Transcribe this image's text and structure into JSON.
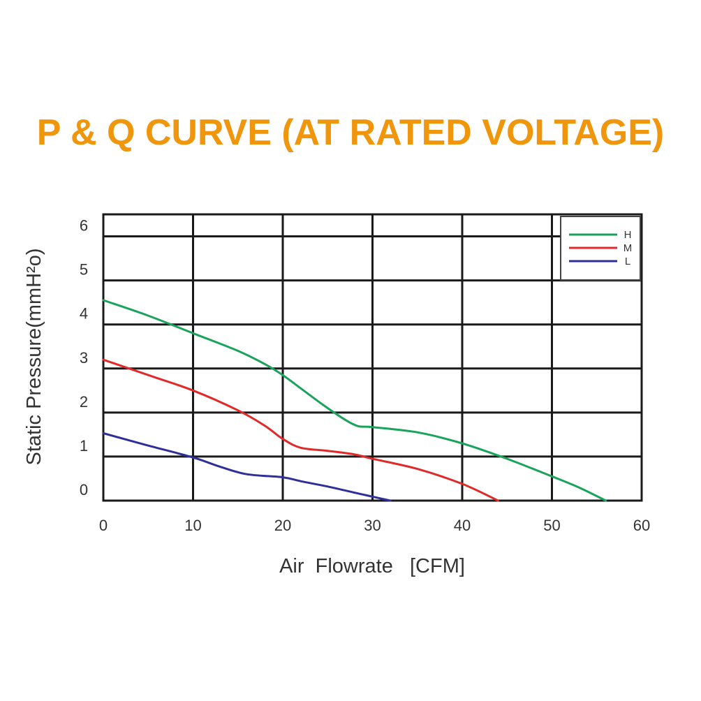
{
  "chart_data": {
    "type": "line",
    "title": "P & Q CURVE (AT RATED VOLTAGE)",
    "xlabel": "Air  Flowrate   [CFM]",
    "ylabel": "Static Pressure(mmH²o)",
    "xlim": [
      0,
      60
    ],
    "ylim": [
      0,
      6
    ],
    "x_ticks": [
      "0",
      "10",
      "20",
      "30",
      "40",
      "50",
      "60"
    ],
    "y_ticks": [
      "0",
      "1",
      "2",
      "3",
      "4",
      "5",
      "6"
    ],
    "grid": true,
    "legend_position": "top-right",
    "series": [
      {
        "name": "H",
        "color": "#1aa35a",
        "x": [
          0,
          5,
          10,
          15,
          18,
          20,
          22,
          25,
          28,
          30,
          35,
          40,
          45,
          50,
          53,
          56
        ],
        "y": [
          4.55,
          4.2,
          3.8,
          3.4,
          3.1,
          2.85,
          2.55,
          2.1,
          1.72,
          1.67,
          1.55,
          1.3,
          0.95,
          0.55,
          0.3,
          0.0
        ]
      },
      {
        "name": "M",
        "color": "#e02a2a",
        "x": [
          0,
          5,
          10,
          15,
          18,
          20,
          22,
          25,
          28,
          30,
          35,
          40,
          44
        ],
        "y": [
          3.2,
          2.85,
          2.5,
          2.05,
          1.7,
          1.4,
          1.2,
          1.13,
          1.05,
          0.95,
          0.72,
          0.38,
          0.0
        ]
      },
      {
        "name": "L",
        "color": "#2f2f9a",
        "x": [
          0,
          5,
          10,
          13,
          16,
          20,
          22,
          25,
          28,
          30,
          32
        ],
        "y": [
          1.53,
          1.25,
          0.98,
          0.77,
          0.6,
          0.53,
          0.44,
          0.32,
          0.18,
          0.09,
          0.0
        ]
      }
    ]
  },
  "colors": {
    "title": "#f0960c",
    "grid": "#1a1a1a",
    "text": "#333333"
  }
}
